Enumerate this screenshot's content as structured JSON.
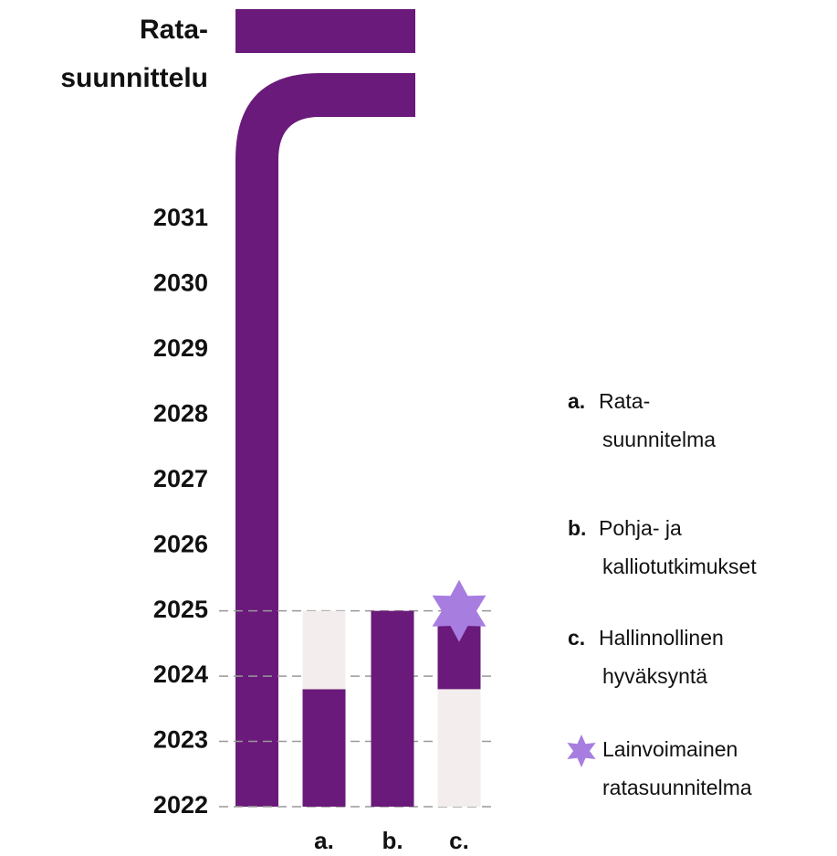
{
  "chart_data": {
    "type": "floating-bar",
    "title_lines": [
      "Rata-",
      "suunnittelu"
    ],
    "ylim": [
      2022,
      2031
    ],
    "yticks": [
      2022,
      2023,
      2024,
      2025,
      2026,
      2027,
      2028,
      2029,
      2030,
      2031
    ],
    "grid_ticks": [
      2022,
      2023,
      2024,
      2025
    ],
    "main_color": "#6a1a7a",
    "bars": [
      {
        "category": "a.",
        "segments": [
          {
            "from": 2022,
            "to": 2023.8,
            "color": "#6a1a7a"
          },
          {
            "from": 2023.8,
            "to": 2025,
            "color": "#f3eded"
          }
        ]
      },
      {
        "category": "b.",
        "segments": [
          {
            "from": 2022,
            "to": 2025,
            "color": "#6a1a7a"
          }
        ]
      },
      {
        "category": "c.",
        "segments": [
          {
            "from": 2022,
            "to": 2023.8,
            "color": "#f3eded"
          },
          {
            "from": 2023.8,
            "to": 2024.85,
            "color": "#6a1a7a"
          }
        ]
      }
    ],
    "star": {
      "bar": 2,
      "value": 2025,
      "color": "#a87de0"
    },
    "legend": [
      {
        "key": "a.",
        "lines": [
          "Rata-",
          "suunnitelma"
        ]
      },
      {
        "key": "b.",
        "lines": [
          "Pohja- ja",
          "kalliotutkimukset"
        ]
      },
      {
        "key": "c.",
        "lines": [
          "Hallinnollinen",
          "hyväksyntä"
        ]
      },
      {
        "key": null,
        "lines": [
          "Lainvoimainen",
          "ratasuunnitelma"
        ]
      }
    ]
  }
}
